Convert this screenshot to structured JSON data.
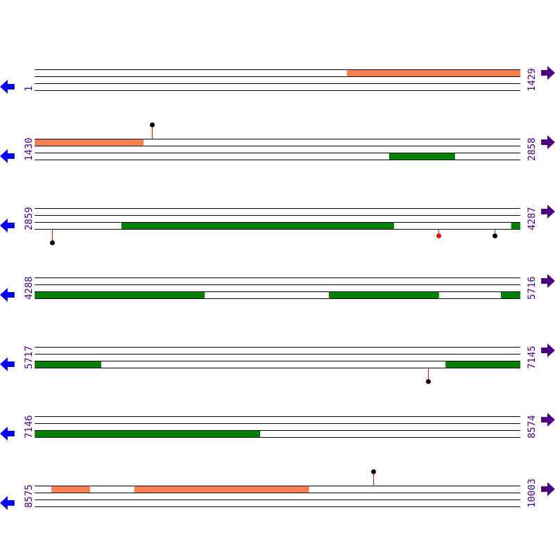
{
  "colors": {
    "line": "#000000",
    "orange_feature": "#ff8050",
    "green_feature": "#008000",
    "label": "#4b0082",
    "left_arrow": "#0000ff",
    "right_arrow": "#4b0082",
    "stem": "#ff0000",
    "head_black": "#000000",
    "head_red": "#ff0000"
  },
  "icons": {
    "left": "arrow-left-icon",
    "right": "arrow-right-icon"
  },
  "rows": [
    {
      "start_label": "1",
      "end_label": "1429",
      "start": 1,
      "end": 1429,
      "orange": [
        [
          919,
          1429
        ]
      ],
      "green": [],
      "markers": []
    },
    {
      "start_label": "1430",
      "end_label": "2858",
      "start": 1430,
      "end": 2858,
      "orange": [
        [
          1430,
          1750
        ]
      ],
      "green": [
        [
          2472,
          2666
        ]
      ],
      "markers": [
        {
          "pos": 1775,
          "dir": "up",
          "head": "black"
        }
      ]
    },
    {
      "start_label": "2859",
      "end_label": "4287",
      "start": 2859,
      "end": 4287,
      "orange": [],
      "green": [
        [
          3114,
          3916
        ],
        [
          4260,
          4287
        ]
      ],
      "markers": [
        {
          "pos": 2910,
          "dir": "down-long",
          "head": "black"
        },
        {
          "pos": 4046,
          "dir": "down",
          "head": "red"
        },
        {
          "pos": 4211,
          "dir": "down",
          "head": "black"
        }
      ]
    },
    {
      "start_label": "4288",
      "end_label": "5716",
      "start": 4288,
      "end": 5716,
      "orange": [],
      "green": [
        [
          4288,
          4788
        ],
        [
          5153,
          5477
        ],
        [
          5659,
          5716
        ]
      ],
      "markers": []
    },
    {
      "start_label": "5717",
      "end_label": "7145",
      "start": 5717,
      "end": 7145,
      "orange": [],
      "green": [
        [
          5717,
          5913
        ],
        [
          6925,
          7145
        ]
      ],
      "markers": [
        {
          "pos": 6874,
          "dir": "down-long",
          "head": "black"
        }
      ]
    },
    {
      "start_label": "7146",
      "end_label": "8574",
      "start": 7146,
      "end": 8574,
      "orange": [],
      "green": [
        [
          7146,
          7809
        ]
      ],
      "markers": []
    },
    {
      "start_label": "8575",
      "end_label": "10003",
      "start": 8575,
      "end": 10003,
      "orange": [
        [
          8624,
          8738
        ],
        [
          8868,
          9382
        ]
      ],
      "green": [],
      "markers": [
        {
          "pos": 9571,
          "dir": "up",
          "head": "black"
        }
      ]
    }
  ]
}
